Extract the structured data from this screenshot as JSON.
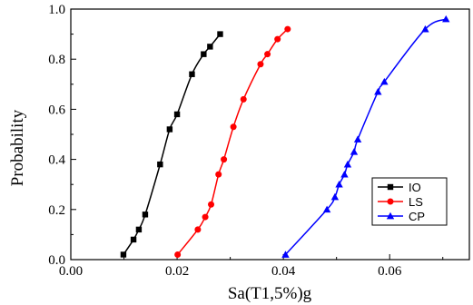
{
  "chart_data": {
    "type": "line",
    "title": "",
    "xlabel": "Sa(T1,5%)g",
    "ylabel": "Probability",
    "xlim": [
      0.0,
      0.075
    ],
    "ylim": [
      0.0,
      1.0
    ],
    "x_ticks": [
      0.0,
      0.02,
      0.04,
      0.06
    ],
    "x_tick_labels": [
      "0.00",
      "0.02",
      "0.04",
      "0.06"
    ],
    "y_ticks": [
      0.0,
      0.2,
      0.4,
      0.6,
      0.8,
      1.0
    ],
    "y_tick_labels": [
      "0.0",
      "0.2",
      "0.4",
      "0.6",
      "0.8",
      "1.0"
    ],
    "grid": false,
    "legend_position": "bottom-right",
    "series": [
      {
        "name": "IO",
        "color": "#000000",
        "marker": "square",
        "points": [
          [
            0.0099,
            0.02
          ],
          [
            0.0118,
            0.08
          ],
          [
            0.0128,
            0.12
          ],
          [
            0.014,
            0.18
          ],
          [
            0.0168,
            0.38
          ],
          [
            0.0186,
            0.52
          ],
          [
            0.02,
            0.58
          ],
          [
            0.0228,
            0.74
          ],
          [
            0.025,
            0.82
          ],
          [
            0.0262,
            0.85
          ],
          [
            0.0281,
            0.9
          ]
        ]
      },
      {
        "name": "LS",
        "color": "#ff0000",
        "marker": "circle",
        "points": [
          [
            0.0201,
            0.02
          ],
          [
            0.0239,
            0.12
          ],
          [
            0.0253,
            0.17
          ],
          [
            0.0264,
            0.22
          ],
          [
            0.0278,
            0.34
          ],
          [
            0.0288,
            0.4
          ],
          [
            0.0306,
            0.53
          ],
          [
            0.0325,
            0.64
          ],
          [
            0.0357,
            0.78
          ],
          [
            0.037,
            0.82
          ],
          [
            0.0389,
            0.88
          ],
          [
            0.0408,
            0.92
          ]
        ]
      },
      {
        "name": "CP",
        "color": "#0000ff",
        "marker": "triangle",
        "points": [
          [
            0.0404,
            0.02
          ],
          [
            0.0482,
            0.2
          ],
          [
            0.0497,
            0.25
          ],
          [
            0.0505,
            0.3
          ],
          [
            0.0515,
            0.34
          ],
          [
            0.0521,
            0.38
          ],
          [
            0.0533,
            0.43
          ],
          [
            0.054,
            0.48
          ],
          [
            0.0578,
            0.67
          ],
          [
            0.059,
            0.71
          ],
          [
            0.0667,
            0.92
          ],
          [
            0.0706,
            0.96
          ]
        ]
      }
    ]
  }
}
